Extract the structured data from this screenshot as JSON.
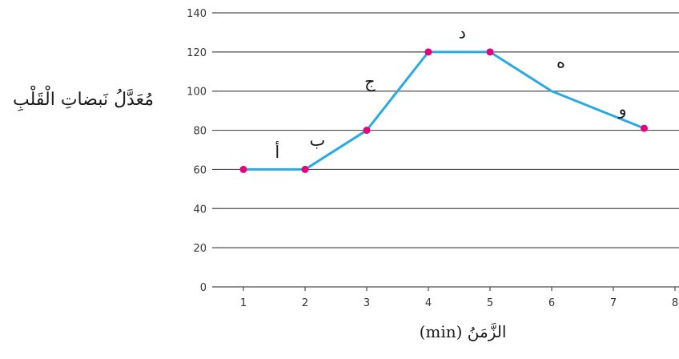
{
  "chart_data": {
    "type": "line",
    "title": "",
    "xlabel": "الزَّمَنُ (min)",
    "ylabel": "مُعَدَّلُ نَبضاتِ الْقَلْبِ",
    "xlim": [
      1,
      8
    ],
    "ylim": [
      0,
      140
    ],
    "x_ticks": [
      "1",
      "2",
      "3",
      "4",
      "5",
      "6",
      "7",
      "8"
    ],
    "y_ticks": [
      "0",
      "20",
      "40",
      "60",
      "80",
      "100",
      "120",
      "140"
    ],
    "grid": "horizontal",
    "series": [
      {
        "x": [
          1,
          2,
          3,
          4,
          5,
          6,
          7.5
        ],
        "y": [
          60,
          60,
          80,
          120,
          120,
          100,
          81
        ],
        "marker_indices": [
          0,
          1,
          2,
          3,
          4,
          6
        ]
      }
    ],
    "segment_labels": [
      {
        "text": "أ",
        "x": 1.55,
        "y": 66
      },
      {
        "text": "ب",
        "x": 2.2,
        "y": 72
      },
      {
        "text": "ج",
        "x": 3.05,
        "y": 102
      },
      {
        "text": "د",
        "x": 4.55,
        "y": 127
      },
      {
        "text": "ه",
        "x": 6.15,
        "y": 112
      },
      {
        "text": "و",
        "x": 7.15,
        "y": 88
      }
    ],
    "colors": {
      "line": "#29abe2",
      "marker": "#e6007e",
      "grid": "#4d4d4d",
      "text": "#1a1a1a"
    }
  }
}
